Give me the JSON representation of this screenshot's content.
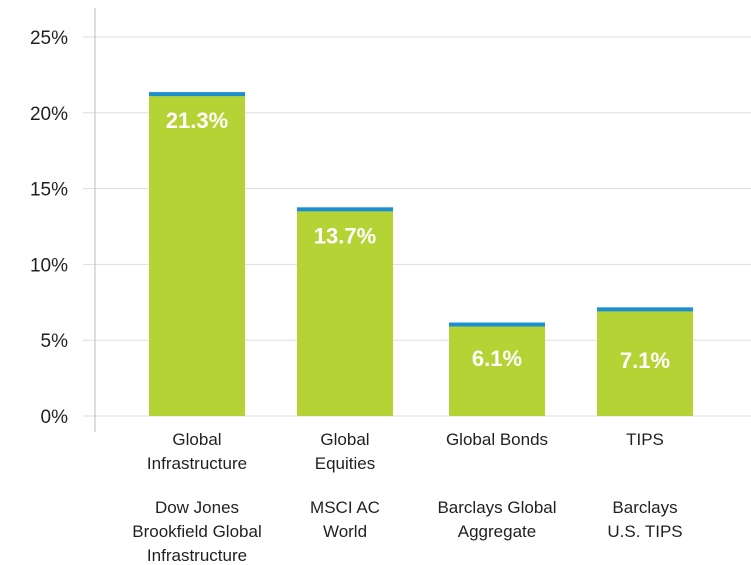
{
  "chart_data": {
    "type": "bar",
    "title": "",
    "xlabel": "",
    "ylabel": "",
    "ylim": [
      0,
      25
    ],
    "yticks": [
      "0%",
      "5%",
      "10%",
      "15%",
      "20%",
      "25%"
    ],
    "ytick_values": [
      0,
      5,
      10,
      15,
      20,
      25
    ],
    "grid": true,
    "legend": "none",
    "categories": [
      {
        "name_lines": [
          "Global",
          "Infrastructure"
        ],
        "index_lines": [
          "Dow Jones",
          "Brookfield Global",
          "Infrastructure"
        ]
      },
      {
        "name_lines": [
          "Global",
          "Equities"
        ],
        "index_lines": [
          "MSCI AC",
          "World"
        ]
      },
      {
        "name_lines": [
          "Global Bonds"
        ],
        "index_lines": [
          "Barclays Global",
          "Aggregate"
        ]
      },
      {
        "name_lines": [
          "TIPS"
        ],
        "index_lines": [
          "Barclays",
          "U.S. TIPS"
        ]
      }
    ],
    "values": [
      21.3,
      13.7,
      6.1,
      7.1
    ],
    "labels": [
      "21.3%",
      "13.7%",
      "6.1%",
      "7.1%"
    ],
    "colors": {
      "bar": "#b5d334",
      "bar_cap": "#1b8fcf",
      "grid": "#dddddd",
      "axis": "#bbbbbb",
      "text": "#231f20",
      "data_label": "#ffffff"
    }
  }
}
